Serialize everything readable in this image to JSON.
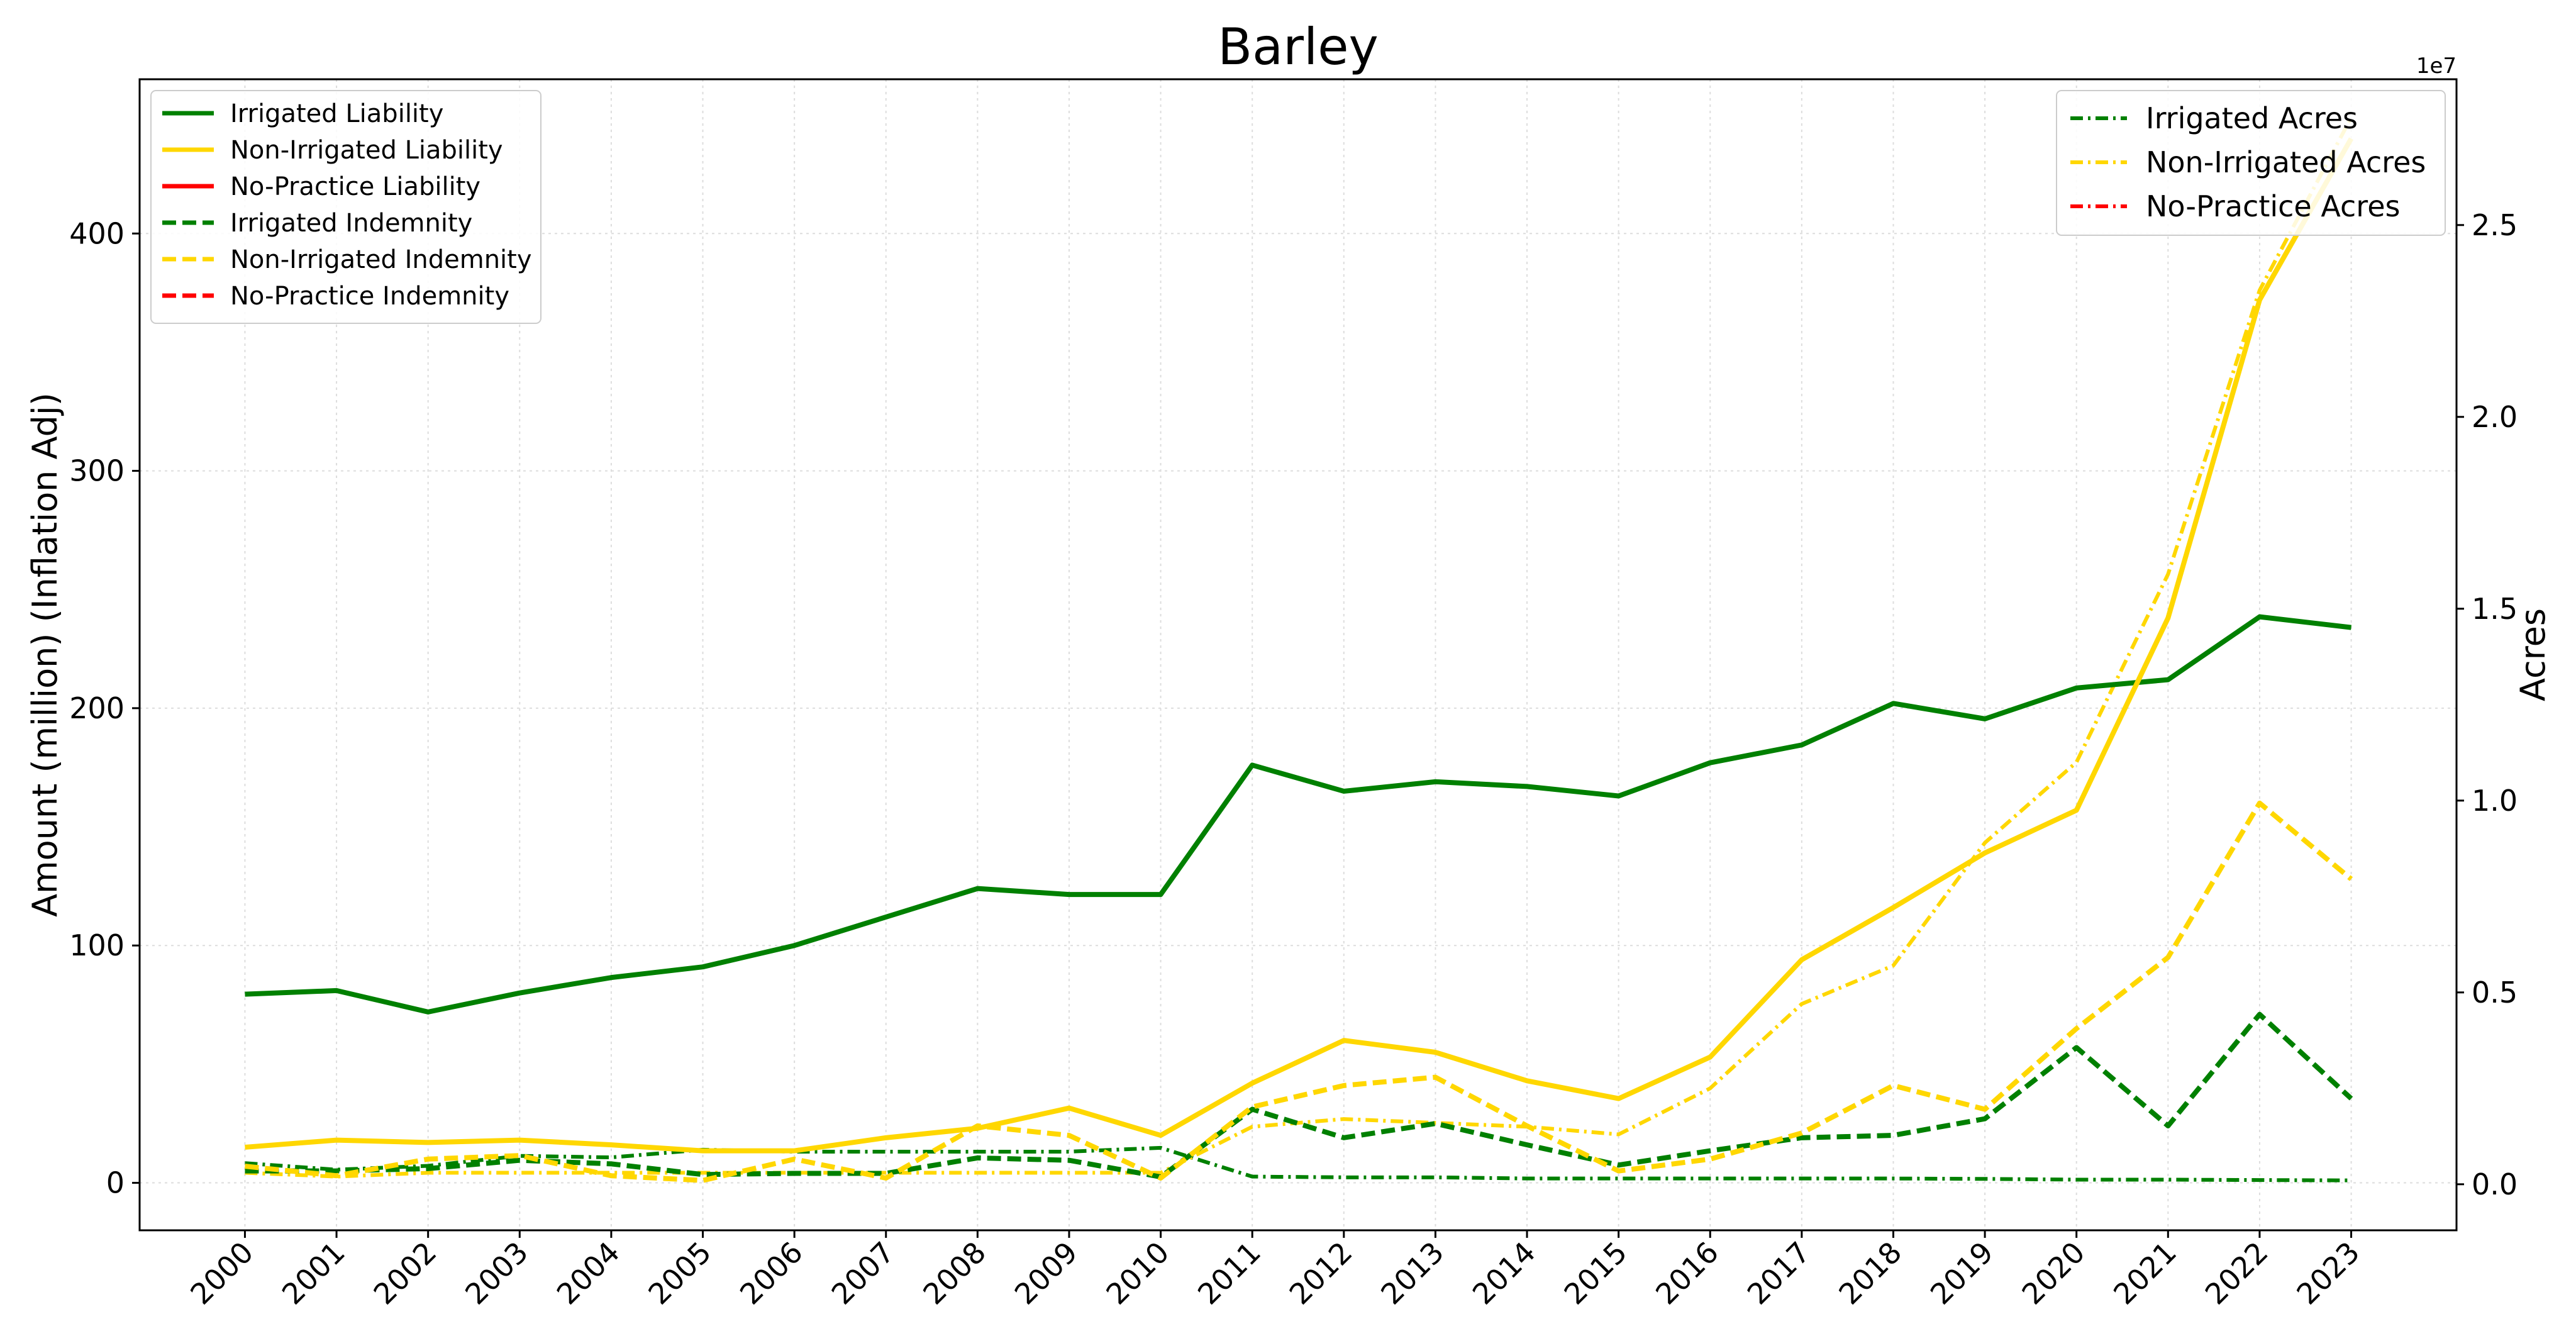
{
  "chart_data": {
    "type": "line",
    "title": "Barley",
    "ylabel_left": "Amount (million) (Inflation Adj)",
    "ylabel_right": "Acres",
    "right_axis_multiplier": "1e7",
    "x": [
      2000,
      2001,
      2002,
      2003,
      2004,
      2005,
      2006,
      2007,
      2008,
      2009,
      2010,
      2011,
      2012,
      2013,
      2014,
      2015,
      2016,
      2017,
      2018,
      2019,
      2020,
      2021,
      2022,
      2023
    ],
    "left_ylim": [
      -20,
      465
    ],
    "right_ylim": [
      -1200000,
      28800000
    ],
    "left_yticks": [
      0,
      100,
      200,
      300,
      400
    ],
    "left_ytick_labels": [
      "0",
      "100",
      "200",
      "300",
      "400"
    ],
    "right_yticks": [
      0,
      5000000,
      10000000,
      15000000,
      20000000,
      25000000
    ],
    "right_ytick_labels": [
      "0.0",
      "0.5",
      "1.0",
      "1.5",
      "2.0",
      "2.5"
    ],
    "grid": true,
    "colors": {
      "irrigated": "#008000",
      "non_irrigated": "#FFD700",
      "no_practice": "#FF0000"
    },
    "series_left": [
      {
        "name": "Irrigated Liability",
        "color": "#008000",
        "style": "solid",
        "values": [
          79.5,
          81,
          72,
          80,
          86.5,
          91,
          100,
          112,
          124,
          121.5,
          121.5,
          176,
          165,
          169,
          167,
          163,
          177,
          184.5,
          202,
          195.5,
          208.5,
          212,
          238.5,
          234
        ]
      },
      {
        "name": "Non-Irrigated Liability",
        "color": "#FFD700",
        "style": "solid",
        "values": [
          15,
          18,
          17,
          18,
          16,
          13.5,
          13.5,
          19,
          23,
          31.5,
          20,
          42,
          60,
          55,
          43,
          35.5,
          53,
          94,
          116,
          139,
          157,
          238,
          372,
          440
        ]
      },
      {
        "name": "No-Practice Liability",
        "color": "#FF0000",
        "style": "solid",
        "values": []
      },
      {
        "name": "Irrigated Indemnity",
        "color": "#008000",
        "style": "dashed",
        "values": [
          5,
          5,
          6,
          9.5,
          8,
          3.5,
          4,
          4,
          10.5,
          9.5,
          2.5,
          31,
          19,
          25,
          16,
          7.5,
          13.5,
          19,
          20,
          27,
          57,
          24,
          71,
          35.5
        ]
      },
      {
        "name": "Non-Irrigated Indemnity",
        "color": "#FFD700",
        "style": "dashed",
        "values": [
          7,
          3,
          10,
          11.5,
          3,
          1,
          10,
          2,
          24,
          20,
          2,
          32,
          41,
          44.5,
          24,
          5,
          10,
          21,
          41,
          31,
          65,
          95,
          160,
          128
        ]
      },
      {
        "name": "No-Practice Indemnity",
        "color": "#FF0000",
        "style": "dashed",
        "values": []
      }
    ],
    "series_right": [
      {
        "name": "Irrigated Acres",
        "color": "#008000",
        "style": "dashdot",
        "values": [
          550000,
          380000,
          480000,
          740000,
          700000,
          900000,
          850000,
          850000,
          850000,
          850000,
          950000,
          200000,
          180000,
          180000,
          150000,
          150000,
          150000,
          150000,
          150000,
          140000,
          120000,
          120000,
          110000,
          100000
        ]
      },
      {
        "name": "Non-Irrigated Acres",
        "color": "#FFD700",
        "style": "dashdot",
        "values": [
          300000,
          200000,
          300000,
          300000,
          300000,
          300000,
          300000,
          300000,
          300000,
          300000,
          300000,
          1500000,
          1700000,
          1600000,
          1500000,
          1300000,
          2500000,
          4700000,
          5700000,
          8900000,
          11000000,
          15900000,
          23300000,
          27800000
        ]
      },
      {
        "name": "No-Practice Acres",
        "color": "#FF0000",
        "style": "dashdot",
        "values": []
      }
    ]
  }
}
